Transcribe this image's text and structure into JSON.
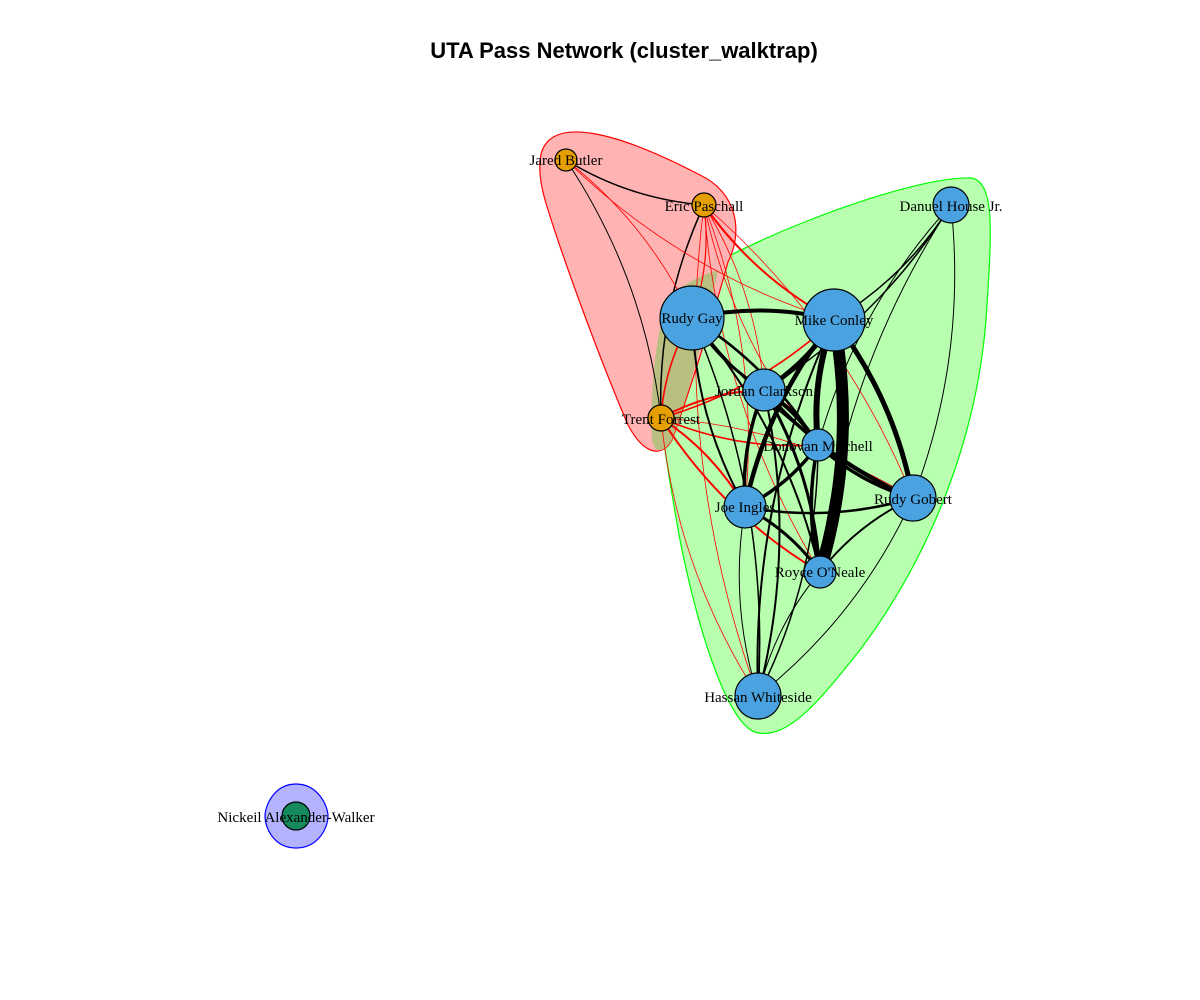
{
  "title": "UTA Pass Network (cluster_walktrap)",
  "colors": {
    "cluster_red_fill": "#ffb3b3",
    "cluster_red_stroke": "#ff0000",
    "cluster_green_fill": "#b8ffb0",
    "cluster_green_stroke": "#00ff00",
    "cluster_blue_fill": "#b3b3ff",
    "cluster_blue_stroke": "#0000ff",
    "overlap_fill": "#b8bf80",
    "node_orange": "#e69f00",
    "node_blue": "#4aa3e0",
    "node_green": "#148a5e",
    "edge_within": "#000000",
    "edge_between": "#ff0000"
  },
  "clusters": [
    {
      "id": 1,
      "color": "red"
    },
    {
      "id": 2,
      "color": "green"
    },
    {
      "id": 3,
      "color": "blue"
    }
  ],
  "nodes": [
    {
      "id": "jared-butler",
      "label": "Jared Butler",
      "cluster": 1
    },
    {
      "id": "eric-paschall",
      "label": "Eric Paschall",
      "cluster": 1
    },
    {
      "id": "trent-forrest",
      "label": "Trent Forrest",
      "cluster": 1
    },
    {
      "id": "rudy-gay",
      "label": "Rudy Gay",
      "cluster": 2
    },
    {
      "id": "mike-conley",
      "label": "Mike Conley",
      "cluster": 2
    },
    {
      "id": "danuel-house",
      "label": "Danuel House Jr.",
      "cluster": 2
    },
    {
      "id": "jordan-clarkson",
      "label": "Jordan Clarkson",
      "cluster": 2
    },
    {
      "id": "donovan-mitchell",
      "label": "Donovan Mitchell",
      "cluster": 2
    },
    {
      "id": "rudy-gobert",
      "label": "Rudy Gobert",
      "cluster": 2
    },
    {
      "id": "joe-ingles",
      "label": "Joe Ingles",
      "cluster": 2
    },
    {
      "id": "royce-oneale",
      "label": "Royce O'Neale",
      "cluster": 2
    },
    {
      "id": "hassan-whiteside",
      "label": "Hassan Whiteside",
      "cluster": 2
    },
    {
      "id": "nickeil-alexander-walker",
      "label": "Nickeil Alexander-Walker",
      "cluster": 3
    }
  ],
  "edges": [
    {
      "from": "jared-butler",
      "to": "eric-paschall",
      "weight": 1.5
    },
    {
      "from": "jared-butler",
      "to": "trent-forrest",
      "weight": 1
    },
    {
      "from": "eric-paschall",
      "to": "trent-forrest",
      "weight": 1.5
    },
    {
      "from": "jared-butler",
      "to": "rudy-gay",
      "weight": 1
    },
    {
      "from": "jared-butler",
      "to": "mike-conley",
      "weight": 1
    },
    {
      "from": "eric-paschall",
      "to": "rudy-gay",
      "weight": 1.5
    },
    {
      "from": "eric-paschall",
      "to": "mike-conley",
      "weight": 2.5
    },
    {
      "from": "eric-paschall",
      "to": "jordan-clarkson",
      "weight": 1
    },
    {
      "from": "eric-paschall",
      "to": "donovan-mitchell",
      "weight": 1
    },
    {
      "from": "eric-paschall",
      "to": "joe-ingles",
      "weight": 1
    },
    {
      "from": "eric-paschall",
      "to": "royce-oneale",
      "weight": 1
    },
    {
      "from": "eric-paschall",
      "to": "rudy-gobert",
      "weight": 1
    },
    {
      "from": "eric-paschall",
      "to": "hassan-whiteside",
      "weight": 1
    },
    {
      "from": "trent-forrest",
      "to": "rudy-gay",
      "weight": 2
    },
    {
      "from": "trent-forrest",
      "to": "mike-conley",
      "weight": 2
    },
    {
      "from": "trent-forrest",
      "to": "jordan-clarkson",
      "weight": 2.5
    },
    {
      "from": "trent-forrest",
      "to": "donovan-mitchell",
      "weight": 2
    },
    {
      "from": "trent-forrest",
      "to": "joe-ingles",
      "weight": 2.5
    },
    {
      "from": "trent-forrest",
      "to": "royce-oneale",
      "weight": 2.5
    },
    {
      "from": "trent-forrest",
      "to": "rudy-gobert",
      "weight": 1
    },
    {
      "from": "trent-forrest",
      "to": "hassan-whiteside",
      "weight": 1
    },
    {
      "from": "rudy-gay",
      "to": "mike-conley",
      "weight": 4
    },
    {
      "from": "rudy-gay",
      "to": "jordan-clarkson",
      "weight": 3
    },
    {
      "from": "rudy-gay",
      "to": "donovan-mitchell",
      "weight": 2.5
    },
    {
      "from": "rudy-gay",
      "to": "joe-ingles",
      "weight": 2
    },
    {
      "from": "rudy-gay",
      "to": "royce-oneale",
      "weight": 2
    },
    {
      "from": "rudy-gay",
      "to": "rudy-gobert",
      "weight": 1.5
    },
    {
      "from": "rudy-gay",
      "to": "hassan-whiteside",
      "weight": 1.5
    },
    {
      "from": "mike-conley",
      "to": "danuel-house",
      "weight": 1.5
    },
    {
      "from": "mike-conley",
      "to": "jordan-clarkson",
      "weight": 5
    },
    {
      "from": "mike-conley",
      "to": "donovan-mitchell",
      "weight": 6
    },
    {
      "from": "mike-conley",
      "to": "rudy-gobert",
      "weight": 5
    },
    {
      "from": "mike-conley",
      "to": "joe-ingles",
      "weight": 4.5
    },
    {
      "from": "mike-conley",
      "to": "royce-oneale",
      "weight": 12
    },
    {
      "from": "mike-conley",
      "to": "hassan-whiteside",
      "weight": 2
    },
    {
      "from": "danuel-house",
      "to": "jordan-clarkson",
      "weight": 1.5
    },
    {
      "from": "danuel-house",
      "to": "donovan-mitchell",
      "weight": 1
    },
    {
      "from": "danuel-house",
      "to": "rudy-gobert",
      "weight": 1
    },
    {
      "from": "danuel-house",
      "to": "royce-oneale",
      "weight": 1
    },
    {
      "from": "jordan-clarkson",
      "to": "donovan-mitchell",
      "weight": 4
    },
    {
      "from": "jordan-clarkson",
      "to": "joe-ingles",
      "weight": 3.5
    },
    {
      "from": "jordan-clarkson",
      "to": "royce-oneale",
      "weight": 3
    },
    {
      "from": "jordan-clarkson",
      "to": "rudy-gobert",
      "weight": 3.5
    },
    {
      "from": "jordan-clarkson",
      "to": "hassan-whiteside",
      "weight": 2
    },
    {
      "from": "donovan-mitchell",
      "to": "rudy-gobert",
      "weight": 3.5
    },
    {
      "from": "donovan-mitchell",
      "to": "joe-ingles",
      "weight": 3.5
    },
    {
      "from": "donovan-mitchell",
      "to": "royce-oneale",
      "weight": 3.5
    },
    {
      "from": "donovan-mitchell",
      "to": "hassan-whiteside",
      "weight": 1.5
    },
    {
      "from": "joe-ingles",
      "to": "rudy-gobert",
      "weight": 2.5
    },
    {
      "from": "joe-ingles",
      "to": "royce-oneale",
      "weight": 3
    },
    {
      "from": "joe-ingles",
      "to": "hassan-whiteside",
      "weight": 1
    },
    {
      "from": "royce-oneale",
      "to": "rudy-gobert",
      "weight": 2
    },
    {
      "from": "royce-oneale",
      "to": "hassan-whiteside",
      "weight": 1
    },
    {
      "from": "rudy-gobert",
      "to": "hassan-whiteside",
      "weight": 1
    }
  ]
}
